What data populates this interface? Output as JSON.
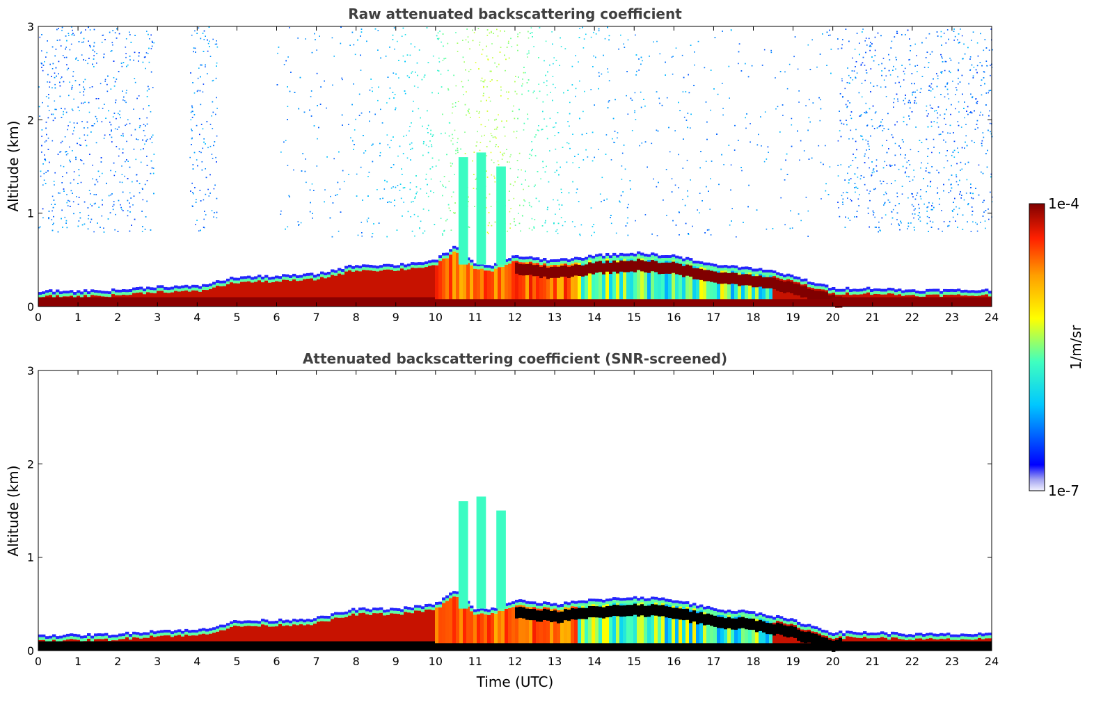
{
  "chart_data": [
    {
      "type": "heatmap",
      "title": "Raw attenuated backscattering coefficient",
      "xlabel": "",
      "ylabel": "Altitude (km)",
      "xlim": [
        0,
        24
      ],
      "ylim": [
        0,
        3
      ],
      "xticks": [
        "0",
        "1",
        "2",
        "3",
        "4",
        "5",
        "6",
        "7",
        "8",
        "9",
        "10",
        "11",
        "12",
        "13",
        "14",
        "15",
        "16",
        "17",
        "18",
        "19",
        "20",
        "21",
        "22",
        "23",
        "24"
      ],
      "yticks": [
        "0",
        "1",
        "2",
        "3"
      ],
      "boundary_layer_top_km": {
        "x": [
          0,
          1,
          2,
          3,
          4,
          5,
          6,
          7,
          8,
          9,
          10,
          10.5,
          11,
          11.5,
          12,
          13,
          14,
          15,
          16,
          17,
          18,
          19,
          20,
          21,
          22,
          23,
          24
        ],
        "y": [
          0.17,
          0.17,
          0.18,
          0.22,
          0.22,
          0.32,
          0.33,
          0.35,
          0.45,
          0.45,
          0.5,
          0.65,
          0.45,
          0.45,
          0.55,
          0.5,
          0.55,
          0.58,
          0.55,
          0.45,
          0.42,
          0.33,
          0.2,
          0.2,
          0.18,
          0.18,
          0.18
        ]
      },
      "noise": "high aloft (above ~0.8 km) in night periods and during 10-14 UTC"
    },
    {
      "type": "heatmap",
      "title": "Attenuated backscattering coefficient (SNR-screened)",
      "xlabel": "Time (UTC)",
      "ylabel": "Altitude (km)",
      "xlim": [
        0,
        24
      ],
      "ylim": [
        0,
        3
      ],
      "xticks": [
        "0",
        "1",
        "2",
        "3",
        "4",
        "5",
        "6",
        "7",
        "8",
        "9",
        "10",
        "11",
        "12",
        "13",
        "14",
        "15",
        "16",
        "17",
        "18",
        "19",
        "20",
        "21",
        "22",
        "23",
        "24"
      ],
      "yticks": [
        "0",
        "1",
        "2",
        "3"
      ],
      "boundary_layer_top_km": {
        "x": [
          0,
          1,
          2,
          3,
          4,
          5,
          6,
          7,
          8,
          9,
          10,
          10.5,
          11,
          11.5,
          12,
          13,
          14,
          15,
          16,
          17,
          18,
          19,
          20,
          21,
          22,
          23,
          24
        ],
        "y": [
          0.17,
          0.17,
          0.18,
          0.22,
          0.22,
          0.32,
          0.33,
          0.35,
          0.45,
          0.45,
          0.5,
          0.65,
          0.45,
          0.45,
          0.55,
          0.5,
          0.55,
          0.58,
          0.55,
          0.45,
          0.42,
          0.33,
          0.2,
          0.2,
          0.18,
          0.18,
          0.18
        ]
      },
      "plumes_km": [
        {
          "x": 10.7,
          "top": 1.6
        },
        {
          "x": 11.15,
          "top": 1.65
        },
        {
          "x": 11.65,
          "top": 1.5
        }
      ]
    }
  ],
  "colorbar": {
    "label": "1/m/sr",
    "max_label": "1e-4",
    "min_label": "1e-7",
    "scale": "log",
    "colormap": "jet",
    "colors": [
      "#e6e6f5",
      "#0000ff",
      "#00c8ff",
      "#40ffbf",
      "#ffff00",
      "#ff9f00",
      "#ff2000",
      "#800000"
    ]
  }
}
